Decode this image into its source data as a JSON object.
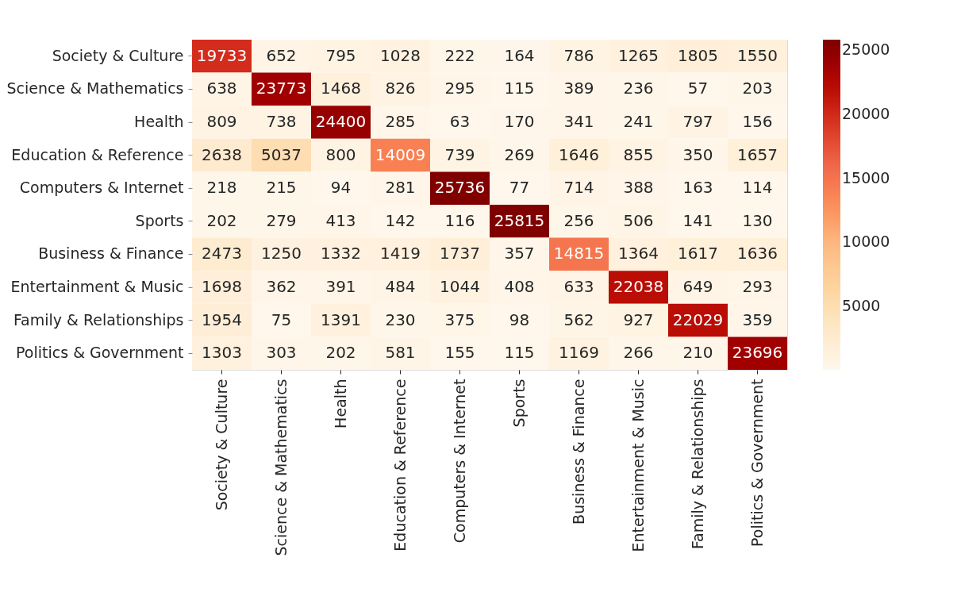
{
  "chart_data": {
    "type": "heatmap",
    "categories": [
      "Society & Culture",
      "Science & Mathematics",
      "Health",
      "Education & Reference",
      "Computers & Internet",
      "Sports",
      "Business & Finance",
      "Entertainment & Music",
      "Family & Relationships",
      "Politics & Government"
    ],
    "y_categories": [
      "Society & Culture",
      "Science & Mathematics",
      "Health",
      "Education & Reference",
      "Computers & Internet",
      "Sports",
      "Business & Finance",
      "Entertainment & Music",
      "Family & Relationships",
      "Politics & Government"
    ],
    "cells": [
      [
        19733,
        652,
        795,
        1028,
        222,
        164,
        786,
        1265,
        1805,
        1550
      ],
      [
        638,
        23773,
        1468,
        826,
        295,
        115,
        389,
        236,
        57,
        203
      ],
      [
        809,
        738,
        24400,
        285,
        63,
        170,
        341,
        241,
        797,
        156
      ],
      [
        2638,
        5037,
        800,
        14009,
        739,
        269,
        1646,
        855,
        350,
        1657
      ],
      [
        218,
        215,
        94,
        281,
        25736,
        77,
        714,
        388,
        163,
        114
      ],
      [
        202,
        279,
        413,
        142,
        116,
        25815,
        256,
        506,
        141,
        130
      ],
      [
        2473,
        1250,
        1332,
        1419,
        1737,
        357,
        14815,
        1364,
        1617,
        1636
      ],
      [
        1698,
        362,
        391,
        484,
        1044,
        408,
        633,
        22038,
        649,
        293
      ],
      [
        1954,
        75,
        1391,
        230,
        375,
        98,
        562,
        927,
        22029,
        359
      ],
      [
        1303,
        303,
        202,
        581,
        155,
        115,
        1169,
        266,
        210,
        23696
      ]
    ],
    "clim": [
      57,
      25815
    ],
    "cticks": [
      5000,
      10000,
      15000,
      20000,
      25000
    ],
    "data_labels": true
  }
}
